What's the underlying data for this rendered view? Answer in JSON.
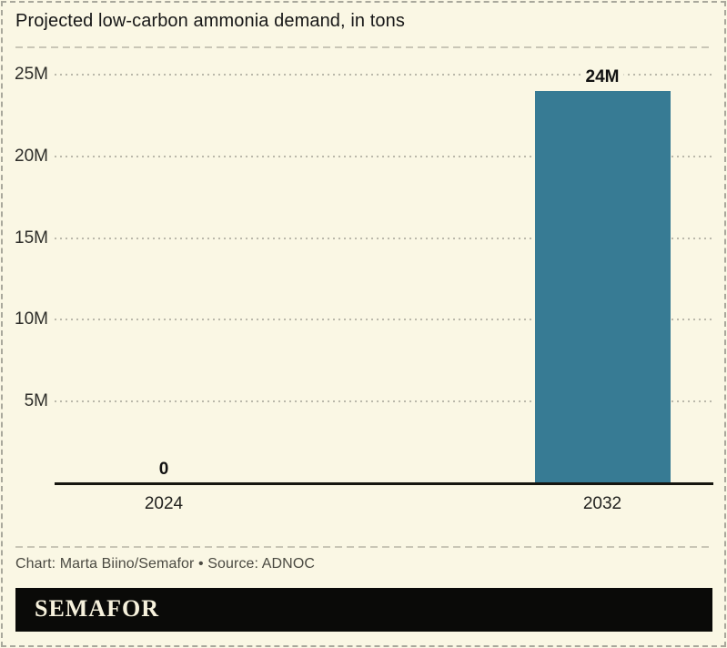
{
  "title": "Projected low-carbon ammonia demand, in tons",
  "credit": "Chart: Marta Biino/Semafor • Source: ADNOC",
  "logo": "SEMAFOR",
  "colors": {
    "background": "#FAF7E4",
    "bar": "#377B94",
    "logo_background": "#0A0A08",
    "logo_text": "#F6F1DC",
    "grid": "#BAB8AA",
    "axis": "#16160F",
    "credit_text": "#4B4A42"
  },
  "chart_data": {
    "type": "bar",
    "title": "Projected low-carbon ammonia demand, in tons",
    "categories": [
      "2024",
      "2032"
    ],
    "values": [
      0,
      24
    ],
    "value_labels": [
      "0",
      "24M"
    ],
    "unit": "millions of tons",
    "ylim": [
      0,
      25
    ],
    "y_ticks": [
      {
        "value": 5,
        "label": "5M"
      },
      {
        "value": 10,
        "label": "10M"
      },
      {
        "value": 15,
        "label": "15M"
      },
      {
        "value": 20,
        "label": "20M"
      },
      {
        "value": 25,
        "label": "25M"
      }
    ],
    "grid": true,
    "legend": null,
    "source": "ADNOC"
  }
}
